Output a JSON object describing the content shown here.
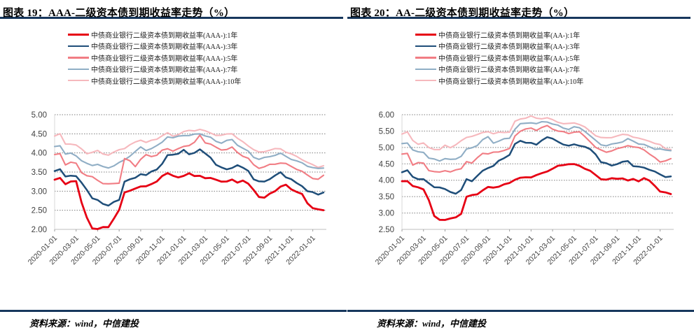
{
  "page": {
    "background": "#ffffff",
    "accent_color": "#17375d"
  },
  "chart_data": [
    {
      "type": "line",
      "title": "图表 19：AAA-二级资本债到期收益率走势（%）",
      "source": "资料来源：wind，中信建投",
      "ylim": [
        2.0,
        5.0
      ],
      "y_step": 0.5,
      "grid": true,
      "legend_position": "top",
      "y_tick_labels": [
        "2.00",
        "2.50",
        "3.00",
        "3.50",
        "4.00",
        "4.50",
        "5.00"
      ],
      "x_tick_labels": [
        "2020-01-01",
        "2020-03-01",
        "2020-05-01",
        "2020-07-01",
        "2020-09-01",
        "2020-11-01",
        "2021-01-01",
        "2021-03-01",
        "2021-05-01",
        "2021-07-01",
        "2021-09-01",
        "2021-11-01",
        "2022-01-01"
      ],
      "x_interval": "semi-monthly from 2020-01-01 to 2022-02-01",
      "series": [
        {
          "name": "中债商业银行二级资本债到期收益率(AAA-):1年",
          "color": "#e60014",
          "values": [
            3.3,
            3.37,
            3.18,
            3.25,
            3.28,
            2.7,
            2.28,
            2.03,
            2.02,
            2.05,
            2.07,
            2.3,
            2.5,
            2.95,
            3.02,
            3.06,
            3.11,
            3.15,
            3.2,
            3.24,
            3.4,
            3.48,
            3.38,
            3.35,
            3.42,
            3.47,
            3.39,
            3.42,
            3.34,
            3.32,
            3.3,
            3.26,
            3.24,
            3.31,
            3.25,
            3.27,
            3.18,
            3.04,
            2.84,
            2.81,
            2.95,
            3.02,
            3.11,
            3.17,
            3.06,
            2.96,
            2.91,
            2.7,
            2.56,
            2.52,
            2.52
          ]
        },
        {
          "name": "中债商业银行二级资本债到期收益率(AAA-):3年",
          "color": "#1f4e79",
          "values": [
            3.55,
            3.57,
            3.38,
            3.42,
            3.38,
            3.2,
            3.04,
            2.82,
            2.76,
            2.68,
            2.64,
            2.7,
            2.76,
            3.26,
            3.3,
            3.34,
            3.47,
            3.43,
            3.5,
            3.57,
            3.72,
            3.92,
            3.95,
            4.0,
            4.08,
            3.96,
            4.02,
            4.09,
            3.96,
            3.88,
            3.7,
            3.61,
            3.58,
            3.63,
            3.67,
            3.6,
            3.54,
            3.3,
            3.24,
            3.27,
            3.33,
            3.4,
            3.5,
            3.37,
            3.29,
            3.2,
            3.15,
            3.0,
            2.97,
            2.93,
            2.97
          ]
        },
        {
          "name": "中债商业银行二级资本债到期收益率(AAA-):5年",
          "color": "#f17d84",
          "values": [
            3.95,
            3.98,
            3.7,
            3.74,
            3.71,
            3.5,
            3.41,
            3.37,
            3.3,
            3.21,
            3.17,
            3.19,
            3.22,
            3.84,
            3.79,
            3.67,
            3.84,
            3.94,
            3.91,
            3.94,
            4.05,
            4.11,
            4.07,
            4.11,
            4.17,
            4.21,
            4.27,
            4.44,
            4.27,
            4.24,
            4.14,
            4.09,
            4.11,
            4.14,
            4.0,
            3.92,
            3.85,
            3.68,
            3.62,
            3.65,
            3.69,
            3.71,
            3.74,
            3.7,
            3.64,
            3.59,
            3.52,
            3.42,
            3.35,
            3.31,
            3.39
          ]
        },
        {
          "name": "中债商业银行二级资本债到期收益率(AAA-):7年",
          "color": "#90aec5",
          "values": [
            4.17,
            4.2,
            3.95,
            3.98,
            3.94,
            3.8,
            3.72,
            3.69,
            3.71,
            3.62,
            3.6,
            3.67,
            3.74,
            3.82,
            3.94,
            4.04,
            4.14,
            4.07,
            4.11,
            4.17,
            4.29,
            4.44,
            4.39,
            4.44,
            4.47,
            4.44,
            4.47,
            4.51,
            4.45,
            4.4,
            4.32,
            4.27,
            4.31,
            4.34,
            4.21,
            4.11,
            4.04,
            3.91,
            3.84,
            3.87,
            3.91,
            3.94,
            3.97,
            3.91,
            3.85,
            3.79,
            3.74,
            3.67,
            3.61,
            3.57,
            3.61
          ]
        },
        {
          "name": "中债商业银行二级资本债到期收益率(AAA-):10年",
          "color": "#f6b8bd",
          "values": [
            4.45,
            4.48,
            4.22,
            4.25,
            4.21,
            4.1,
            4.0,
            4.02,
            4.04,
            3.97,
            3.95,
            4.01,
            4.09,
            4.14,
            4.21,
            4.27,
            4.34,
            4.27,
            4.31,
            4.37,
            4.47,
            4.52,
            4.44,
            4.49,
            4.54,
            4.57,
            4.59,
            4.62,
            4.57,
            4.54,
            4.47,
            4.44,
            4.49,
            4.51,
            4.37,
            4.29,
            4.21,
            4.09,
            4.01,
            4.04,
            4.07,
            4.09,
            4.11,
            4.04,
            3.97,
            3.91,
            3.84,
            3.74,
            3.67,
            3.63,
            3.67
          ]
        }
      ]
    },
    {
      "type": "line",
      "title": "图表 20：AA-二级资本债到期收益率走势（%）",
      "source": "资料来源：wind，中信建投",
      "ylim": [
        2.5,
        6.0
      ],
      "y_step": 0.5,
      "grid": true,
      "legend_position": "top",
      "y_tick_labels": [
        "2.50",
        "3.00",
        "3.50",
        "4.00",
        "4.50",
        "5.00",
        "5.50",
        "6.00"
      ],
      "x_tick_labels": [
        "2020-01-01",
        "2020-03-01",
        "2020-05-01",
        "2020-07-01",
        "2020-09-01",
        "2020-11-01",
        "2021-01-01",
        "2021-03-01",
        "2021-05-01",
        "2021-07-01",
        "2021-09-01",
        "2021-11-01",
        "2022-01-01"
      ],
      "x_interval": "semi-monthly from 2020-01-01 to 2022-02-01",
      "series": [
        {
          "name": "中债商业银行二级资本债到期收益率(AA-):1年",
          "color": "#e60014",
          "values": [
            3.97,
            4.0,
            3.82,
            3.78,
            3.74,
            3.38,
            2.88,
            2.8,
            2.8,
            2.82,
            2.88,
            3.0,
            3.48,
            3.53,
            3.58,
            3.68,
            3.78,
            3.8,
            3.82,
            3.86,
            3.92,
            4.02,
            4.05,
            4.08,
            4.11,
            4.16,
            4.21,
            4.29,
            4.35,
            4.41,
            4.46,
            4.5,
            4.48,
            4.45,
            4.38,
            4.28,
            4.14,
            4.04,
            4.01,
            4.04,
            4.06,
            4.08,
            3.98,
            4.04,
            3.98,
            4.04,
            3.97,
            3.85,
            3.66,
            3.62,
            3.6
          ]
        },
        {
          "name": "中债商业银行二级资本债到期收益率(AA-):3年",
          "color": "#1f4e79",
          "values": [
            4.27,
            4.3,
            4.1,
            4.05,
            4.02,
            3.88,
            3.8,
            3.79,
            3.72,
            3.66,
            3.61,
            3.68,
            4.02,
            3.98,
            4.12,
            4.28,
            4.4,
            4.45,
            4.58,
            4.68,
            4.78,
            5.08,
            5.2,
            5.17,
            5.14,
            5.08,
            5.24,
            5.31,
            5.24,
            5.18,
            5.1,
            5.04,
            5.11,
            5.08,
            5.01,
            4.93,
            4.8,
            4.54,
            4.5,
            4.47,
            4.51,
            4.55,
            4.59,
            4.44,
            4.39,
            4.37,
            4.34,
            4.27,
            4.17,
            4.12,
            4.12
          ]
        },
        {
          "name": "中债商业银行二级资本债到期收益率(AA-):5年",
          "color": "#f17d84",
          "values": [
            4.79,
            4.82,
            4.48,
            4.52,
            4.5,
            4.31,
            4.27,
            4.24,
            4.31,
            4.27,
            4.29,
            4.34,
            4.58,
            4.51,
            4.68,
            4.85,
            4.81,
            4.84,
            4.87,
            4.91,
            4.94,
            5.35,
            5.52,
            5.56,
            5.59,
            5.54,
            5.6,
            5.64,
            5.57,
            5.51,
            5.47,
            5.44,
            5.49,
            5.46,
            5.32,
            5.18,
            4.99,
            4.91,
            4.88,
            4.91,
            4.95,
            5.01,
            5.06,
            4.99,
            4.99,
            4.95,
            4.8,
            4.69,
            4.58,
            4.59,
            4.63
          ]
        },
        {
          "name": "中债商业银行二级资本债到期收益率(AA-):7年",
          "color": "#90aec5",
          "values": [
            5.12,
            5.15,
            4.9,
            4.85,
            4.87,
            4.68,
            4.64,
            4.61,
            4.67,
            4.61,
            4.64,
            4.74,
            4.94,
            4.99,
            5.09,
            5.24,
            5.31,
            5.14,
            5.19,
            5.24,
            5.29,
            5.58,
            5.72,
            5.74,
            5.77,
            5.71,
            5.76,
            5.79,
            5.72,
            5.67,
            5.61,
            5.57,
            5.61,
            5.59,
            5.5,
            5.34,
            5.21,
            5.11,
            5.06,
            5.09,
            5.14,
            5.17,
            5.24,
            5.19,
            5.13,
            5.09,
            5.02,
            4.97,
            4.95,
            4.89,
            4.91
          ]
        },
        {
          "name": "中债商业银行二级资本债到期收益率(AA-):10年",
          "color": "#f6b8bd",
          "values": [
            5.42,
            5.45,
            5.2,
            5.12,
            5.14,
            4.99,
            4.96,
            4.94,
            5.04,
            4.99,
            5.09,
            5.19,
            5.31,
            5.37,
            5.39,
            5.44,
            5.49,
            5.41,
            5.44,
            5.47,
            5.49,
            5.79,
            5.87,
            5.91,
            5.94,
            5.87,
            5.89,
            5.91,
            5.84,
            5.79,
            5.74,
            5.71,
            5.74,
            5.71,
            5.61,
            5.49,
            5.39,
            5.31,
            5.28,
            5.31,
            5.35,
            5.37,
            5.39,
            5.34,
            5.28,
            5.24,
            5.21,
            5.11,
            5.06,
            4.97,
            4.94
          ]
        }
      ]
    }
  ]
}
